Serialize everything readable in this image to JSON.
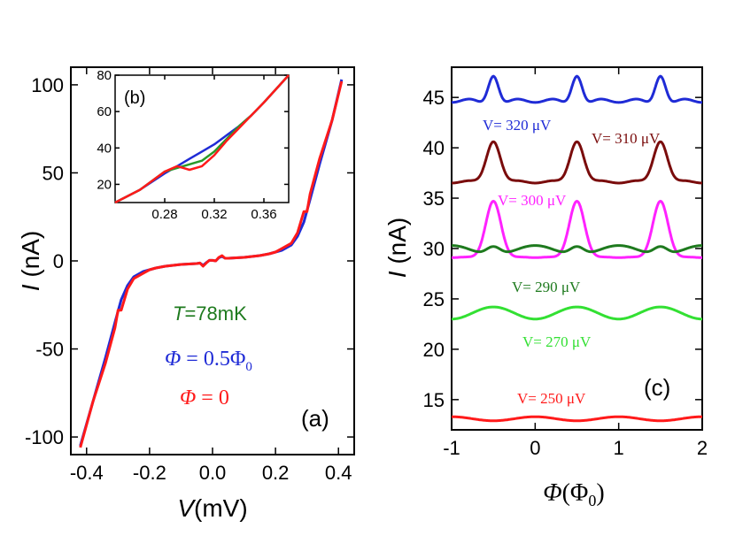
{
  "chart_data": [
    {
      "panel": "a",
      "type": "line",
      "panel_label": "(a)",
      "xlabel_var": "V",
      "xlabel_unit": "(mV)",
      "ylabel_var": "I",
      "ylabel_unit": " (nA)",
      "xlim": [
        -0.45,
        0.45
      ],
      "ylim": [
        -110,
        110
      ],
      "xticks": [
        -0.4,
        -0.2,
        0.0,
        0.2,
        0.4
      ],
      "xtick_labels": [
        "-0.4",
        "-0.2",
        "0.0",
        "0.2",
        "0.4"
      ],
      "yticks": [
        -100,
        -50,
        0,
        50,
        100
      ],
      "ytick_labels": [
        "-100",
        "-50",
        "0",
        "50",
        "100"
      ],
      "annotations": {
        "temperature": {
          "var": "T",
          "text": "=78mK",
          "color": "#1e7a1e"
        },
        "phi_half": {
          "var": "Φ",
          "text": " = 0.5Φ",
          "sub": "0",
          "color": "#1f2bd6"
        },
        "phi_zero": {
          "var": "Φ",
          "text": " = 0",
          "color": "#ff1a1a"
        }
      },
      "series": [
        {
          "name": "Φ = 0.5Φ0",
          "color": "#1f2bd6",
          "x": [
            -0.42,
            -0.38,
            -0.34,
            -0.31,
            -0.29,
            -0.27,
            -0.25,
            -0.22,
            -0.2,
            -0.18,
            -0.15,
            -0.1,
            -0.05,
            -0.04,
            -0.03,
            -0.02,
            -0.01,
            0.0,
            0.01,
            0.02,
            0.03,
            0.04,
            0.05,
            0.1,
            0.15,
            0.18,
            0.2,
            0.22,
            0.25,
            0.27,
            0.29,
            0.31,
            0.34,
            0.38,
            0.41
          ],
          "y": [
            -105,
            -80,
            -55,
            -35,
            -22,
            -14,
            -9,
            -6,
            -5,
            -4,
            -3,
            -2,
            -1.5,
            -1.2,
            -2.5,
            -1.0,
            0.3,
            0.3,
            0.0,
            1.8,
            2.5,
            1.5,
            1.5,
            2,
            3,
            4,
            5,
            6,
            9,
            14,
            22,
            35,
            55,
            80,
            103
          ]
        },
        {
          "name": "Φ = 0",
          "color": "#ff1a1a",
          "x": [
            -0.42,
            -0.38,
            -0.34,
            -0.31,
            -0.3,
            -0.29,
            -0.27,
            -0.25,
            -0.22,
            -0.2,
            -0.18,
            -0.15,
            -0.1,
            -0.05,
            -0.04,
            -0.03,
            -0.02,
            -0.01,
            0.0,
            0.01,
            0.02,
            0.03,
            0.04,
            0.05,
            0.1,
            0.15,
            0.18,
            0.2,
            0.22,
            0.25,
            0.27,
            0.29,
            0.3,
            0.31,
            0.34,
            0.38,
            0.41
          ],
          "y": [
            -106,
            -80,
            -58,
            -38,
            -28,
            -28,
            -16,
            -10,
            -7,
            -5,
            -4,
            -3,
            -2,
            -1.5,
            -1.2,
            -3.0,
            -1.2,
            0.3,
            0.3,
            0.0,
            2.0,
            3.0,
            1.5,
            1.5,
            2,
            3,
            4,
            5,
            7,
            10,
            16,
            28,
            28,
            38,
            58,
            80,
            102
          ]
        }
      ]
    },
    {
      "panel": "b",
      "type": "line",
      "panel_label": "(b)",
      "xlim": [
        0.24,
        0.38
      ],
      "ylim": [
        10,
        80
      ],
      "xticks": [
        0.28,
        0.32,
        0.36
      ],
      "xtick_labels": [
        "0.28",
        "0.32",
        "0.36"
      ],
      "yticks": [
        20,
        40,
        60,
        80
      ],
      "ytick_labels": [
        "20",
        "40",
        "60",
        "80"
      ],
      "series": [
        {
          "name": "blue",
          "color": "#1f2bd6",
          "x": [
            0.24,
            0.26,
            0.28,
            0.29,
            0.3,
            0.31,
            0.32,
            0.33,
            0.34,
            0.35,
            0.36,
            0.38
          ],
          "y": [
            10,
            17,
            26,
            30,
            34,
            38,
            42,
            47,
            52,
            58,
            65,
            80
          ]
        },
        {
          "name": "green",
          "color": "#2a9a2a",
          "x": [
            0.24,
            0.26,
            0.28,
            0.29,
            0.3,
            0.31,
            0.32,
            0.33,
            0.34,
            0.35,
            0.36,
            0.38
          ],
          "y": [
            10,
            17,
            27,
            29,
            31,
            33,
            38,
            45,
            52,
            58,
            65,
            80
          ]
        },
        {
          "name": "red",
          "color": "#ff1a1a",
          "x": [
            0.24,
            0.26,
            0.28,
            0.29,
            0.295,
            0.3,
            0.31,
            0.32,
            0.33,
            0.34,
            0.35,
            0.36,
            0.38
          ],
          "y": [
            10,
            17,
            27,
            30,
            29,
            28,
            30,
            36,
            44,
            51,
            58,
            65,
            80
          ]
        }
      ]
    },
    {
      "panel": "c",
      "type": "line",
      "panel_label": "(c)",
      "xlabel_var": "Φ",
      "xlabel_unit": "(Φ",
      "xlabel_sub": "0",
      "xlabel_close": ")",
      "ylabel_var": "I",
      "ylabel_unit": " (nA)",
      "xlim": [
        -1,
        2
      ],
      "ylim": [
        12,
        48
      ],
      "xticks": [
        -1,
        0,
        1,
        2
      ],
      "xtick_labels": [
        "-1",
        "0",
        "1",
        "2"
      ],
      "yticks": [
        15,
        20,
        25,
        30,
        35,
        40,
        45
      ],
      "ytick_labels": [
        "15",
        "20",
        "25",
        "30",
        "35",
        "40",
        "45"
      ],
      "series": [
        {
          "name": "V= 320 μV",
          "color": "#1f2bd6",
          "base": 44.5,
          "amp": 3.2,
          "width": 0.09,
          "ripple": 0.3,
          "offset": -0.3
        },
        {
          "name": "V= 310 μV",
          "color": "#7a0c0c",
          "base": 36.5,
          "amp": 4.5,
          "width": 0.12,
          "ripple": 0.2,
          "offset": -0.2
        },
        {
          "name": "V= 300 μV",
          "color": "#ff22ff",
          "base": 29.0,
          "amp": 6.0,
          "width": 0.13,
          "ripple": 0.2,
          "offset": -0.1
        },
        {
          "name": "V= 290 μV",
          "color": "#1e7a1e",
          "base": 29.8,
          "amp": 0.9,
          "width": 0.12,
          "ripple": 0.5,
          "offset": 0.0
        },
        {
          "name": "V= 270 μV",
          "color": "#33e033",
          "base": 23.6,
          "amp": 0.0,
          "width": 0.12,
          "ripple": -0.6,
          "offset": 0.0
        },
        {
          "name": "V= 250 μV",
          "color": "#ff1a1a",
          "base": 13.1,
          "amp": 0.0,
          "width": 0.12,
          "ripple": 0.2,
          "offset": 0.0
        }
      ]
    }
  ]
}
